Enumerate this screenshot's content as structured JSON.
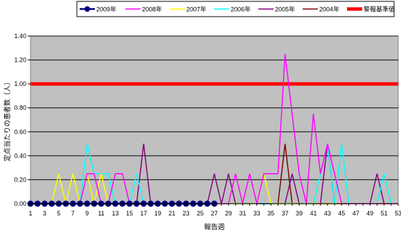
{
  "chart_data": {
    "type": "line",
    "title": "",
    "xlabel": "報告週",
    "ylabel": "定点当たりの患者数（人）",
    "ylim": [
      0,
      1.4
    ],
    "yticks": [
      "0.00",
      "0.20",
      "0.40",
      "0.60",
      "0.80",
      "1.00",
      "1.20",
      "1.40"
    ],
    "yticks_values": [
      0,
      0.2,
      0.4,
      0.6,
      0.8,
      1.0,
      1.2,
      1.4
    ],
    "xlim": [
      1,
      53
    ],
    "xticks": [
      "1",
      "3",
      "5",
      "7",
      "9",
      "11",
      "13",
      "15",
      "17",
      "19",
      "21",
      "23",
      "25",
      "27",
      "29",
      "31",
      "33",
      "35",
      "37",
      "39",
      "41",
      "43",
      "45",
      "47",
      "49",
      "51",
      "53"
    ],
    "grid": true,
    "plot_background": "#c0c0c0",
    "legend_position": "top",
    "threshold": {
      "name": "警報基準値",
      "value": 1.0,
      "color": "#ff0000"
    },
    "series": [
      {
        "name": "2009年",
        "color": "#000080",
        "marker": "circle",
        "x": [
          1,
          2,
          3,
          4,
          5,
          6,
          7,
          8,
          9,
          10,
          11,
          12,
          13,
          14,
          15,
          16,
          17,
          18,
          19,
          20,
          21,
          22,
          23,
          24,
          25,
          26,
          27
        ],
        "values": [
          0,
          0,
          0,
          0,
          0,
          0,
          0,
          0,
          0,
          0,
          0,
          0,
          0,
          0,
          0,
          0,
          0,
          0,
          0,
          0,
          0,
          0,
          0,
          0,
          0,
          0,
          0
        ]
      },
      {
        "name": "2008年",
        "color": "#ff00ff",
        "x": [
          1,
          2,
          3,
          4,
          5,
          6,
          7,
          8,
          9,
          10,
          11,
          12,
          13,
          14,
          15,
          16,
          17,
          18,
          19,
          20,
          21,
          22,
          23,
          24,
          25,
          26,
          27,
          28,
          29,
          30,
          31,
          32,
          33,
          34,
          35,
          36,
          37,
          38,
          39,
          40,
          41,
          42,
          43,
          44,
          45,
          46,
          47,
          48,
          49,
          50,
          51,
          52,
          53
        ],
        "values": [
          0,
          0,
          0,
          0,
          0,
          0,
          0,
          0,
          0.25,
          0.25,
          0,
          0,
          0.25,
          0.25,
          0,
          0,
          0,
          0,
          0,
          0,
          0,
          0,
          0,
          0,
          0,
          0,
          0,
          0,
          0,
          0.25,
          0,
          0.25,
          0,
          0.25,
          0.25,
          0.25,
          1.25,
          0.75,
          0.25,
          0,
          0.75,
          0.25,
          0.5,
          0.25,
          0,
          0,
          0,
          0,
          0,
          0,
          0,
          0,
          0
        ]
      },
      {
        "name": "2007年",
        "color": "#ffff00",
        "x": [
          1,
          2,
          3,
          4,
          5,
          6,
          7,
          8,
          9,
          10,
          11,
          12,
          13,
          14,
          15,
          16,
          17,
          18,
          19,
          20,
          21,
          22,
          23,
          24,
          25,
          26,
          27,
          28,
          29,
          30,
          31,
          32,
          33,
          34,
          35,
          36,
          37,
          38,
          39,
          40,
          41,
          42,
          43,
          44,
          45,
          46,
          47,
          48,
          49,
          50,
          51,
          52,
          53
        ],
        "values": [
          0,
          0,
          0,
          0,
          0.25,
          0,
          0.25,
          0,
          0.25,
          0,
          0.25,
          0,
          0,
          0,
          0,
          0,
          0,
          0,
          0,
          0,
          0,
          0,
          0,
          0,
          0,
          0,
          0,
          0,
          0,
          0,
          0,
          0,
          0,
          0.25,
          0,
          0,
          0,
          0,
          0,
          0,
          0,
          0,
          0,
          0,
          0,
          0,
          0,
          0,
          0,
          0,
          0,
          0,
          0
        ]
      },
      {
        "name": "2006年",
        "color": "#00ffff",
        "x": [
          1,
          2,
          3,
          4,
          5,
          6,
          7,
          8,
          9,
          10,
          11,
          12,
          13,
          14,
          15,
          16,
          17,
          18,
          19,
          20,
          21,
          22,
          23,
          24,
          25,
          26,
          27,
          28,
          29,
          30,
          31,
          32,
          33,
          34,
          35,
          36,
          37,
          38,
          39,
          40,
          41,
          42,
          43,
          44,
          45,
          46,
          47,
          48,
          49,
          50,
          51,
          52,
          53
        ],
        "values": [
          0,
          0,
          0,
          0,
          0,
          0,
          0,
          0,
          0.5,
          0.25,
          0.25,
          0.25,
          0,
          0,
          0,
          0.25,
          0,
          0,
          0,
          0,
          0,
          0,
          0,
          0,
          0,
          0,
          0,
          0,
          0,
          0,
          0,
          0,
          0,
          0,
          0,
          0,
          0,
          0,
          0,
          0,
          0,
          0.25,
          0.5,
          0,
          0.5,
          0,
          0,
          0,
          0,
          0,
          0.25,
          0,
          0
        ]
      },
      {
        "name": "2005年",
        "color": "#800080",
        "x": [
          1,
          2,
          3,
          4,
          5,
          6,
          7,
          8,
          9,
          10,
          11,
          12,
          13,
          14,
          15,
          16,
          17,
          18,
          19,
          20,
          21,
          22,
          23,
          24,
          25,
          26,
          27,
          28,
          29,
          30,
          31,
          32,
          33,
          34,
          35,
          36,
          37,
          38,
          39,
          40,
          41,
          42,
          43,
          44,
          45,
          46,
          47,
          48,
          49,
          50,
          51,
          52,
          53
        ],
        "values": [
          0,
          0,
          0,
          0,
          0,
          0,
          0,
          0,
          0,
          0,
          0,
          0,
          0,
          0,
          0,
          0,
          0.5,
          0,
          0,
          0,
          0,
          0,
          0,
          0,
          0,
          0,
          0.25,
          0,
          0.25,
          0,
          0,
          0,
          0,
          0,
          0,
          0,
          0,
          0.25,
          0,
          0,
          0,
          0,
          0.5,
          0,
          0,
          0,
          0,
          0,
          0,
          0.25,
          0,
          0,
          0
        ]
      },
      {
        "name": "2004年",
        "color": "#800000",
        "x": [
          1,
          2,
          3,
          4,
          5,
          6,
          7,
          8,
          9,
          10,
          11,
          12,
          13,
          14,
          15,
          16,
          17,
          18,
          19,
          20,
          21,
          22,
          23,
          24,
          25,
          26,
          27,
          28,
          29,
          30,
          31,
          32,
          33,
          34,
          35,
          36,
          37,
          38,
          39,
          40,
          41,
          42,
          43,
          44,
          45,
          46,
          47,
          48,
          49,
          50,
          51,
          52,
          53
        ],
        "values": [
          0,
          0,
          0,
          0,
          0,
          0,
          0,
          0,
          0,
          0,
          0,
          0,
          0,
          0,
          0,
          0,
          0,
          0,
          0,
          0,
          0,
          0,
          0,
          0,
          0,
          0,
          0,
          0,
          0,
          0,
          0,
          0,
          0,
          0,
          0,
          0,
          0.5,
          0,
          0,
          0,
          0,
          0,
          0,
          0,
          0,
          0,
          0,
          0,
          0,
          0,
          0,
          0,
          0
        ]
      }
    ]
  }
}
